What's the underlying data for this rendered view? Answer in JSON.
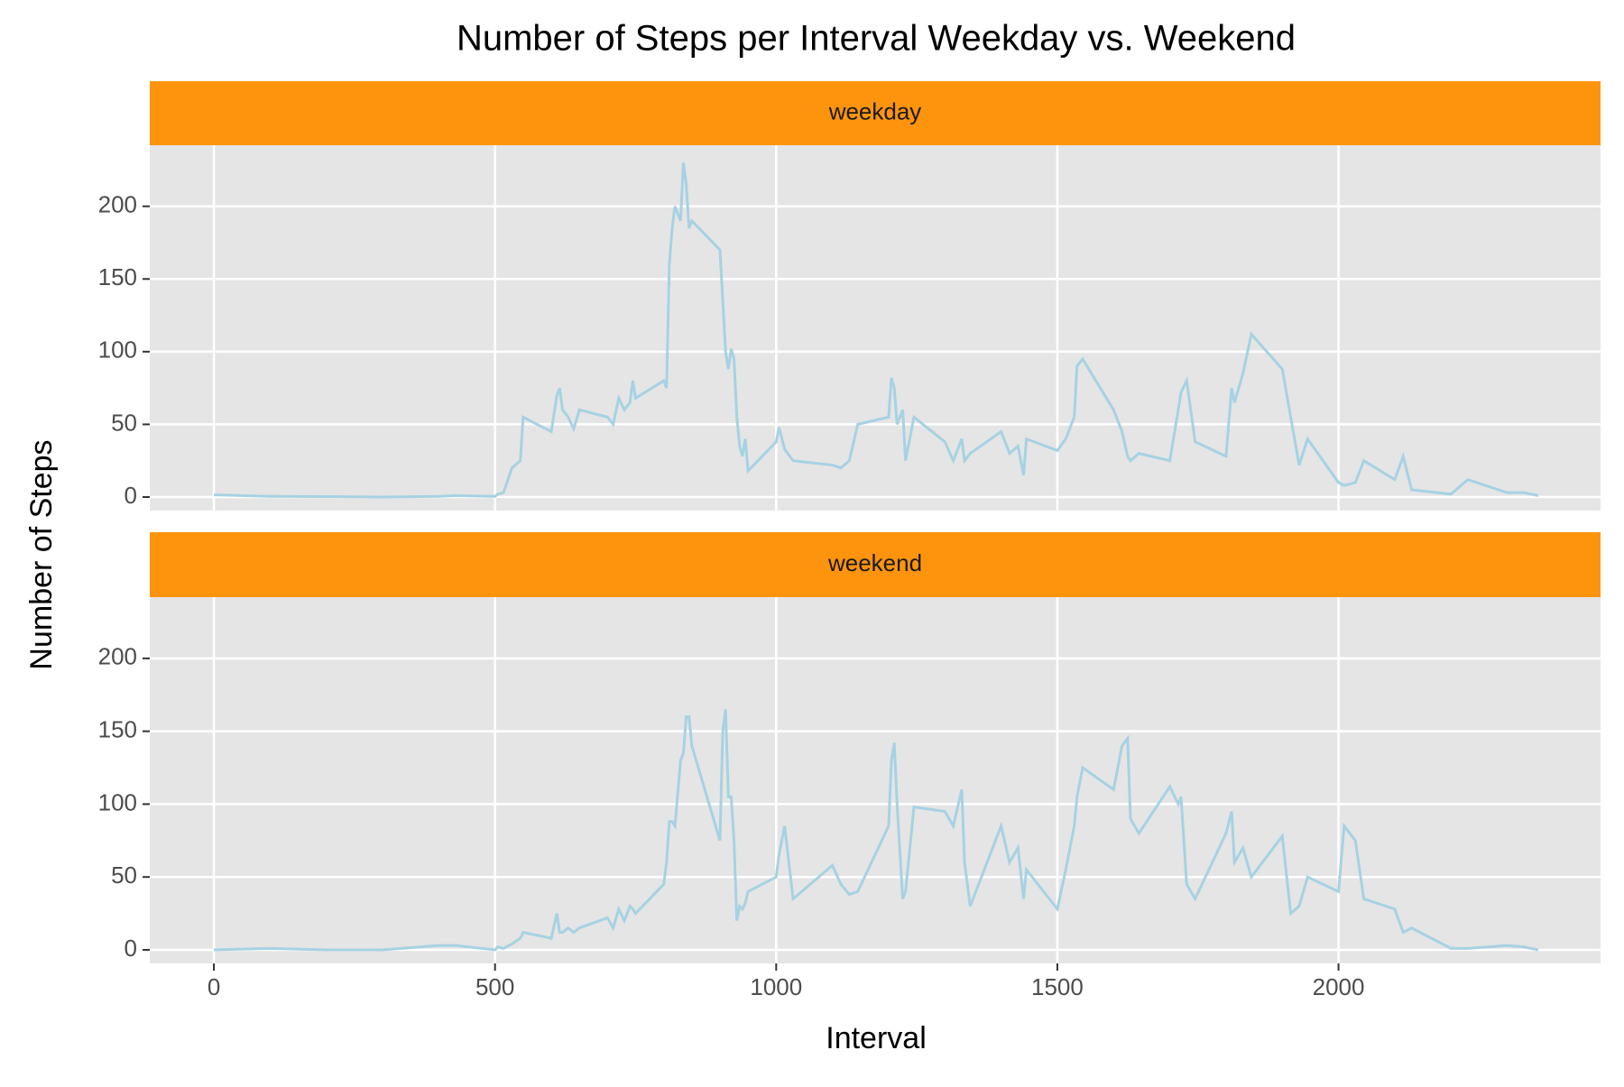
{
  "chart_data": {
    "type": "line",
    "facet": true,
    "title": "Number of Steps per Interval Weekday vs. Weekend",
    "xlabel": "Interval",
    "ylabel": "Number of Steps",
    "x": [
      0,
      100,
      200,
      300,
      400,
      430,
      500,
      505,
      515,
      530,
      545,
      550,
      600,
      610,
      615,
      620,
      630,
      640,
      650,
      700,
      710,
      720,
      730,
      740,
      745,
      750,
      800,
      805,
      810,
      815,
      820,
      830,
      835,
      840,
      845,
      850,
      900,
      905,
      910,
      915,
      920,
      925,
      930,
      935,
      940,
      945,
      950,
      1000,
      1005,
      1015,
      1030,
      1100,
      1115,
      1130,
      1145,
      1200,
      1205,
      1210,
      1215,
      1225,
      1230,
      1245,
      1300,
      1315,
      1330,
      1335,
      1345,
      1400,
      1415,
      1430,
      1440,
      1445,
      1500,
      1515,
      1530,
      1535,
      1545,
      1600,
      1615,
      1625,
      1630,
      1645,
      1700,
      1715,
      1720,
      1730,
      1745,
      1800,
      1810,
      1815,
      1830,
      1845,
      1900,
      1915,
      1930,
      1945,
      2000,
      2010,
      2030,
      2045,
      2100,
      2115,
      2130,
      2200,
      2230,
      2300,
      2330,
      2355
    ],
    "series": [
      {
        "name": "weekday",
        "color": "#a6d2e3",
        "values": [
          1.5,
          0.5,
          0.3,
          0,
          0.5,
          1,
          0.5,
          2,
          3,
          20,
          25,
          55,
          45,
          70,
          75,
          60,
          55,
          47,
          60,
          55,
          50,
          68,
          60,
          65,
          80,
          68,
          80,
          75,
          160,
          185,
          200,
          190,
          230,
          215,
          185,
          190,
          170,
          135,
          100,
          88,
          102,
          95,
          55,
          35,
          28,
          40,
          18,
          38,
          48,
          33,
          25,
          22,
          20,
          25,
          50,
          55,
          82,
          75,
          50,
          60,
          25,
          55,
          38,
          25,
          40,
          25,
          30,
          45,
          30,
          35,
          15,
          40,
          32,
          40,
          55,
          90,
          95,
          60,
          45,
          28,
          25,
          30,
          25,
          60,
          72,
          80,
          38,
          28,
          75,
          65,
          85,
          112,
          88,
          55,
          22,
          40,
          10,
          8,
          10,
          25,
          12,
          28,
          5,
          2,
          12,
          3,
          3,
          1
        ]
      },
      {
        "name": "weekend",
        "color": "#a6d2e3",
        "values": [
          0,
          1,
          0,
          0,
          3,
          3,
          0,
          2,
          1,
          4,
          8,
          12,
          8,
          25,
          12,
          12,
          15,
          12,
          15,
          22,
          15,
          28,
          20,
          30,
          28,
          25,
          45,
          60,
          88,
          88,
          85,
          130,
          135,
          160,
          160,
          140,
          75,
          150,
          165,
          105,
          105,
          75,
          20,
          30,
          28,
          32,
          40,
          50,
          65,
          85,
          35,
          58,
          45,
          38,
          40,
          85,
          130,
          142,
          100,
          35,
          40,
          98,
          95,
          85,
          110,
          60,
          30,
          85,
          60,
          70,
          35,
          55,
          28,
          55,
          85,
          105,
          125,
          110,
          140,
          145,
          90,
          80,
          112,
          100,
          105,
          45,
          35,
          80,
          95,
          60,
          70,
          50,
          78,
          25,
          30,
          50,
          40,
          85,
          75,
          35,
          28,
          12,
          15,
          1,
          1,
          3,
          2,
          0
        ]
      }
    ],
    "xlim": [
      -114,
      2466
    ],
    "ylim": [
      -9.3,
      242
    ],
    "xticks": [
      0,
      500,
      1000,
      1500,
      2000
    ],
    "yticks": [
      0,
      50,
      100,
      150,
      200
    ],
    "grid": true,
    "strip_color": "#fe940e",
    "panel_color": "#e5e5e5"
  }
}
